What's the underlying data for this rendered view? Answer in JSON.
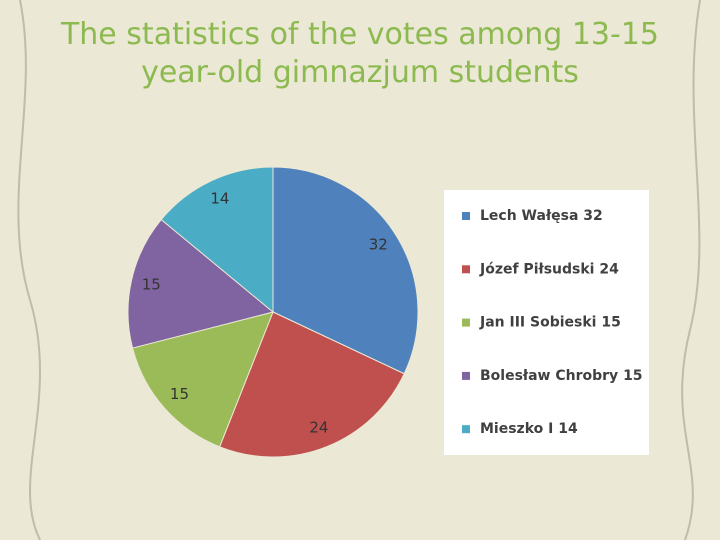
{
  "chart_data": {
    "type": "pie",
    "title": "The statistics of the votes among 13-15 year-old gimnazjum students",
    "categories": [
      "Lech Wałęsa",
      "Józef Piłsudski",
      "Jan III Sobieski",
      "Bolesław Chrobry",
      "Mieszko I"
    ],
    "values": [
      32,
      24,
      15,
      15,
      14
    ],
    "colors": [
      "#4f81bd",
      "#c0504d",
      "#9bbb59",
      "#8064a2",
      "#4bacc6"
    ],
    "legend": "right"
  }
}
